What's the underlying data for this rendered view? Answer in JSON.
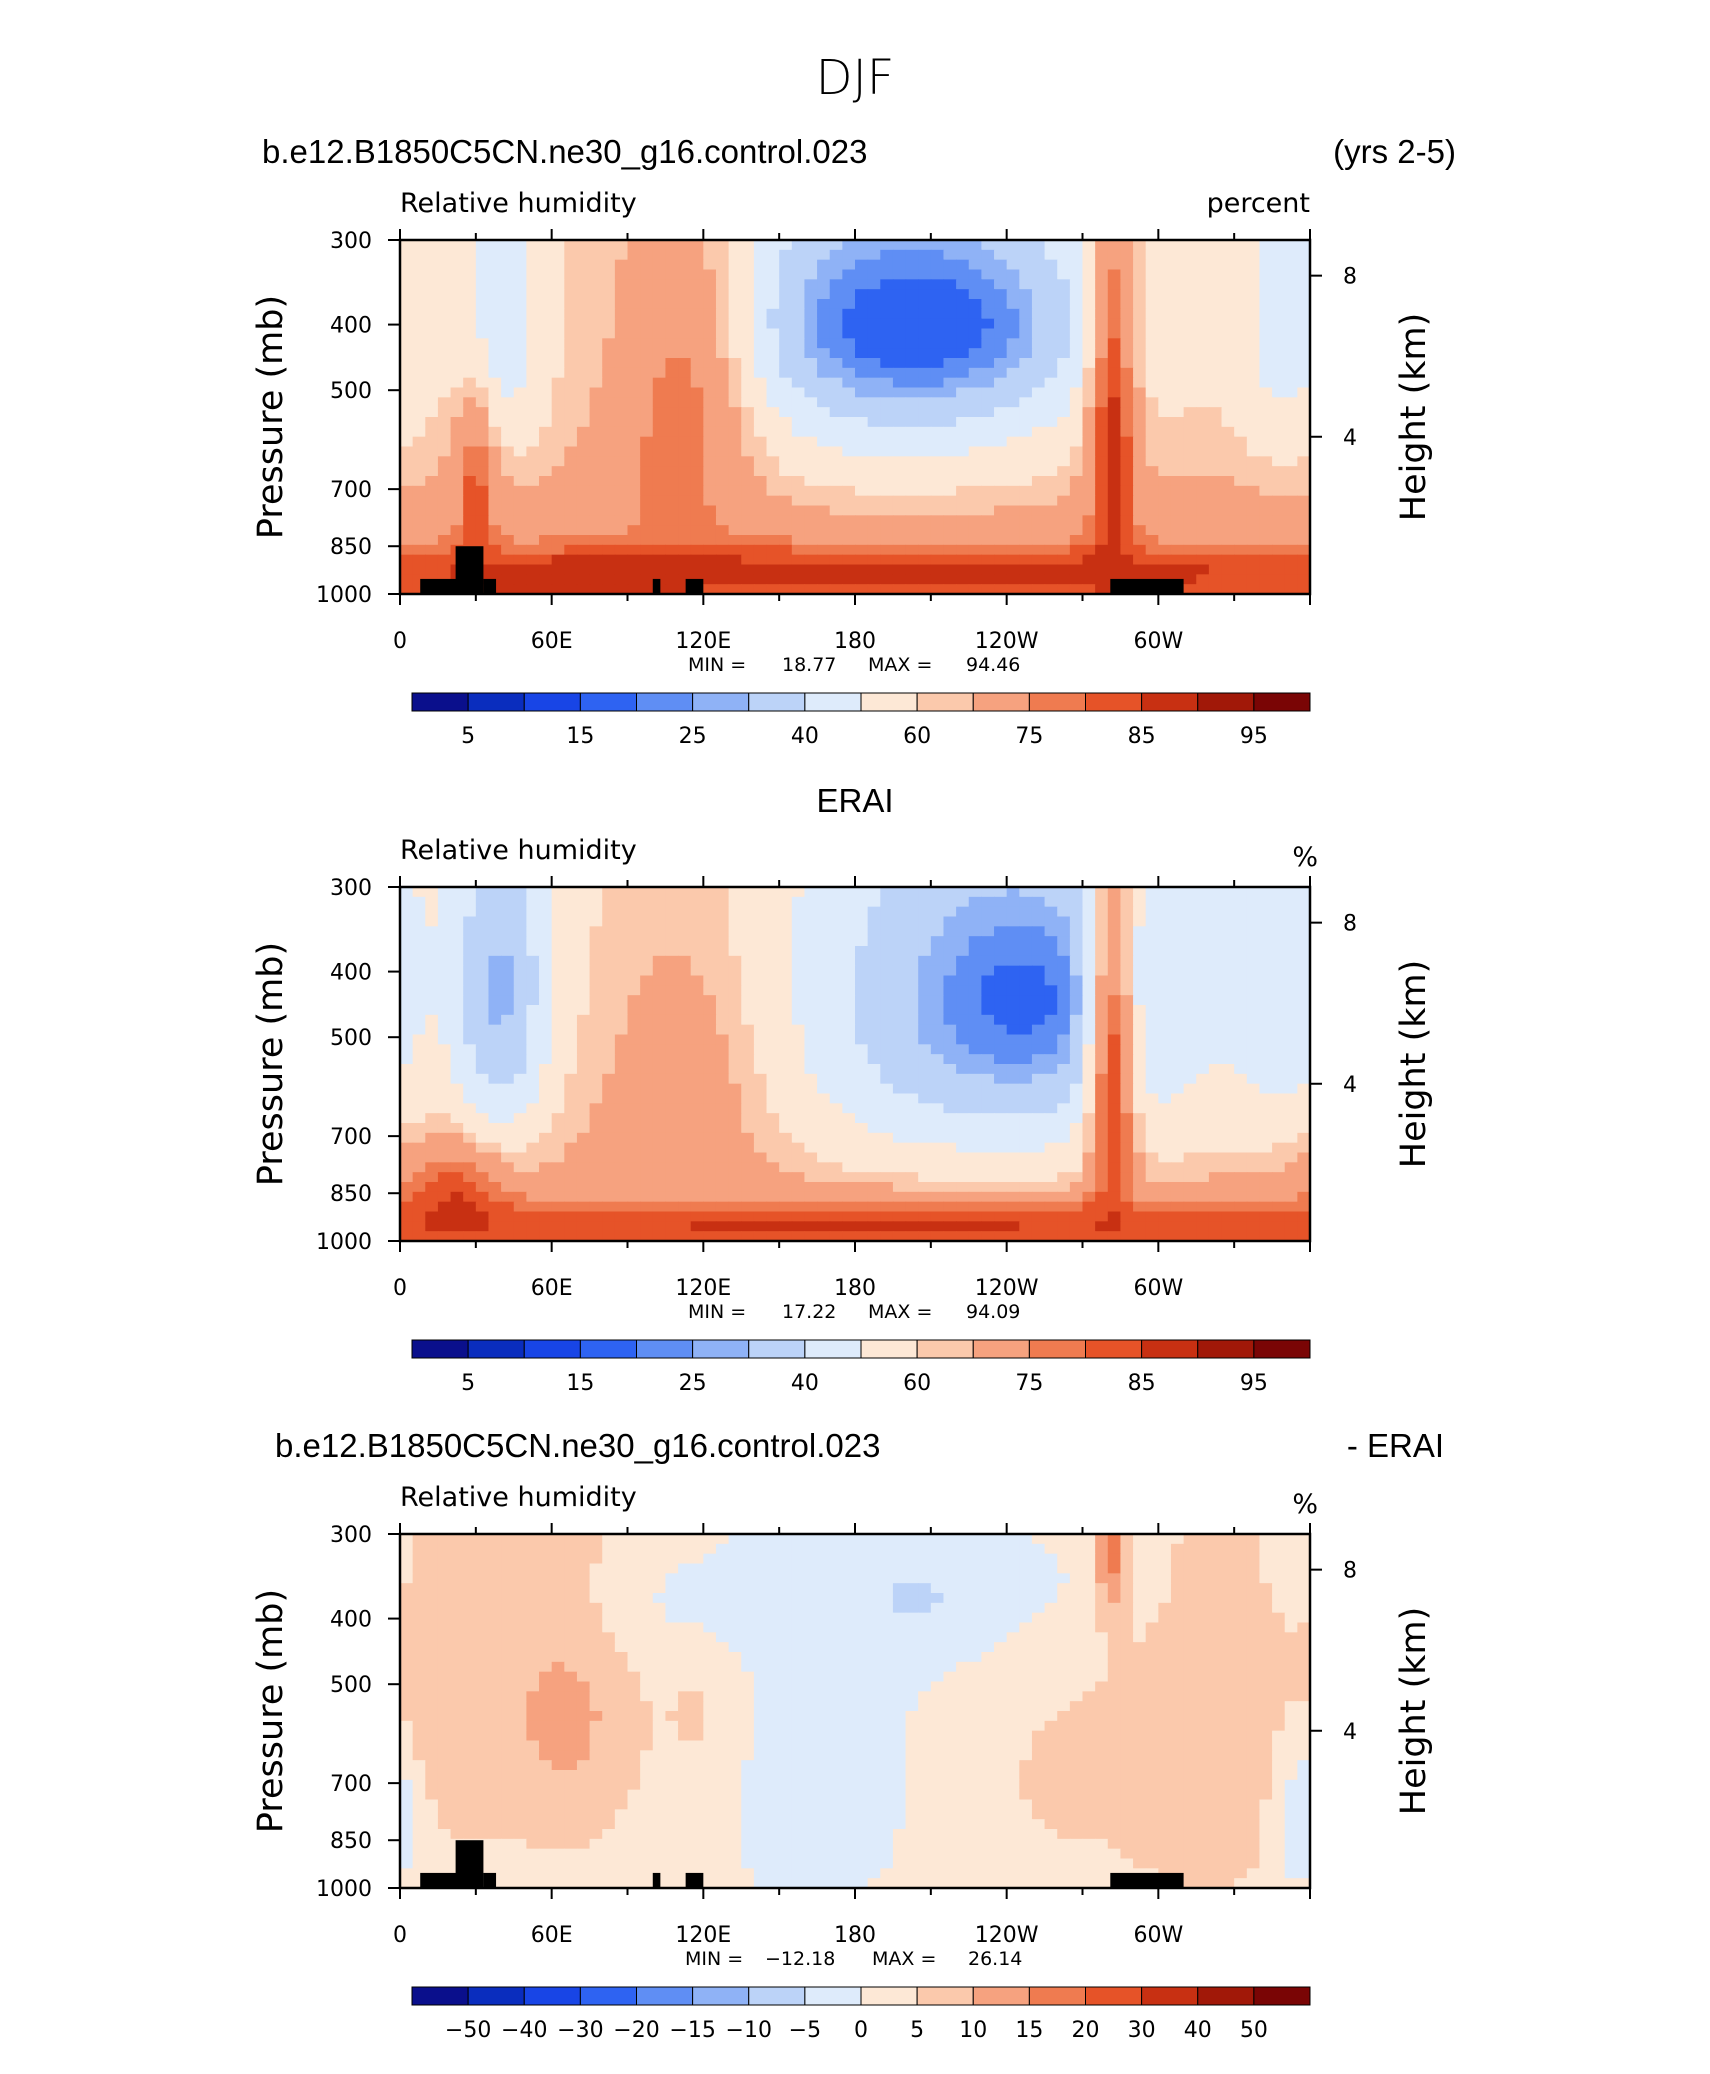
{
  "title": "DJF",
  "chart_data": [
    {
      "type": "heatmap",
      "case_label": "b.e12.B1850C5CN.ne30_g16.control.023",
      "period_label": "(yrs 2-5)",
      "variable": "Relative humidity",
      "units": "percent",
      "ylabel": "Pressure (mb)",
      "y2label": "Height (km)",
      "x_ticks": [
        "0",
        "60E",
        "120E",
        "180",
        "120W",
        "60W"
      ],
      "y_ticks": [
        "300",
        "400",
        "500",
        "700",
        "850",
        "1000"
      ],
      "y2_ticks": [
        "8",
        "4"
      ],
      "min_label": "MIN =",
      "min": "18.77",
      "max_label": "MAX =",
      "max": "94.46",
      "levels": [
        5,
        10,
        15,
        20,
        25,
        30,
        40,
        50,
        60,
        65,
        75,
        80,
        85,
        90,
        95
      ],
      "colorbar_labels": [
        "5",
        "15",
        "25",
        "40",
        "60",
        "75",
        "85",
        "95"
      ],
      "blobs": [
        {
          "lon": 200,
          "p": 400,
          "rx": 55,
          "rp": 170,
          "v": 28
        },
        {
          "lon": 205,
          "p": 400,
          "rx": 35,
          "rp": 70,
          "v": 15
        },
        {
          "lon": 40,
          "p": 400,
          "rx": 12,
          "rp": 140,
          "v": 42
        },
        {
          "lon": 350,
          "p": 400,
          "rx": 14,
          "rp": 150,
          "v": 45
        },
        {
          "lon": 110,
          "p": 600,
          "rx": 20,
          "rp": 300,
          "v": 78
        },
        {
          "lon": 30,
          "p": 720,
          "rx": 6,
          "rp": 150,
          "v": 82
        },
        {
          "lon": 282,
          "p": 650,
          "rx": 7,
          "rp": 350,
          "v": 88
        },
        {
          "lon": 180,
          "p": 930,
          "rx": 200,
          "rp": 60,
          "v": 88
        },
        {
          "lon": 70,
          "p": 950,
          "rx": 25,
          "rp": 40,
          "v": 90
        }
      ]
    },
    {
      "type": "heatmap",
      "case_label": "ERAI",
      "period_label": "",
      "variable": "Relative humidity",
      "units": "%",
      "ylabel": "Pressure (mb)",
      "y2label": "Height (km)",
      "x_ticks": [
        "0",
        "60E",
        "120E",
        "180",
        "120W",
        "60W"
      ],
      "y_ticks": [
        "300",
        "400",
        "500",
        "700",
        "850",
        "1000"
      ],
      "y2_ticks": [
        "8",
        "4"
      ],
      "min_label": "MIN =",
      "min": "17.22",
      "max_label": "MAX =",
      "max": "94.09",
      "levels": [
        5,
        10,
        15,
        20,
        25,
        30,
        40,
        50,
        60,
        65,
        75,
        80,
        85,
        90,
        95
      ],
      "colorbar_labels": [
        "5",
        "15",
        "25",
        "40",
        "60",
        "75",
        "85",
        "95"
      ],
      "blobs": [
        {
          "lon": 235,
          "p": 450,
          "rx": 60,
          "rp": 220,
          "v": 30
        },
        {
          "lon": 245,
          "p": 440,
          "rx": 25,
          "rp": 90,
          "v": 18
        },
        {
          "lon": 40,
          "p": 430,
          "rx": 14,
          "rp": 190,
          "v": 28
        },
        {
          "lon": 350,
          "p": 420,
          "rx": 14,
          "rp": 160,
          "v": 42
        },
        {
          "lon": 110,
          "p": 650,
          "rx": 25,
          "rp": 300,
          "v": 70
        },
        {
          "lon": 282,
          "p": 650,
          "rx": 7,
          "rp": 350,
          "v": 85
        },
        {
          "lon": 180,
          "p": 940,
          "rx": 200,
          "rp": 50,
          "v": 86
        },
        {
          "lon": 22,
          "p": 900,
          "rx": 15,
          "rp": 120,
          "v": 86
        }
      ]
    },
    {
      "type": "heatmap",
      "case_label": "b.e12.B1850C5CN.ne30_g16.control.023",
      "period_label": "- ERAI",
      "variable": "Relative humidity",
      "units": "%",
      "ylabel": "Pressure (mb)",
      "y2label": "Height (km)",
      "x_ticks": [
        "0",
        "60E",
        "120E",
        "180",
        "120W",
        "60W"
      ],
      "y_ticks": [
        "300",
        "400",
        "500",
        "700",
        "850",
        "1000"
      ],
      "y2_ticks": [
        "8",
        "4"
      ],
      "min_label": "MIN =",
      "min": "−12.18",
      "max_label": "MAX =",
      "max": "26.14",
      "levels": [
        -50,
        -40,
        -30,
        -20,
        -15,
        -10,
        -5,
        0,
        5,
        10,
        15,
        20,
        30,
        40,
        50
      ],
      "colorbar_labels": [
        "−50",
        "−40",
        "−30",
        "−20",
        "−15",
        "−10",
        "−5",
        "0",
        "5",
        "10",
        "15",
        "20",
        "30",
        "40",
        "50"
      ],
      "blobs": [
        {
          "lon": 65,
          "p": 520,
          "rx": 22,
          "rp": 230,
          "v": 12
        },
        {
          "lon": 20,
          "p": 520,
          "rx": 18,
          "rp": 200,
          "v": 10
        },
        {
          "lon": 125,
          "p": 520,
          "rx": 15,
          "rp": 150,
          "v": 10
        },
        {
          "lon": 210,
          "p": 380,
          "rx": 80,
          "rp": 70,
          "v": -7
        },
        {
          "lon": 165,
          "p": 650,
          "rx": 30,
          "rp": 300,
          "v": -3
        },
        {
          "lon": 255,
          "p": 700,
          "rx": 25,
          "rp": 250,
          "v": 5
        },
        {
          "lon": 282,
          "p": 320,
          "rx": 5,
          "rp": 60,
          "v": 20
        },
        {
          "lon": 320,
          "p": 600,
          "rx": 30,
          "rp": 300,
          "v": 9
        },
        {
          "lon": 357,
          "p": 800,
          "rx": 8,
          "rp": 150,
          "v": -4
        }
      ]
    }
  ]
}
